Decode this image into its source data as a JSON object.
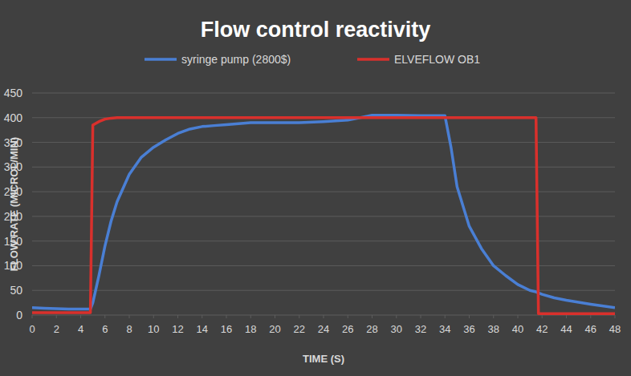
{
  "chart_data": {
    "type": "line",
    "title": "Flow control reactivity",
    "x_label": "TIME (S)",
    "y_label": "FLOW RATE (MICROL/MIN)",
    "x": [
      0,
      1,
      2,
      3,
      4,
      4.8,
      5,
      5.5,
      6,
      6.5,
      7,
      8,
      9,
      10,
      11,
      12,
      13,
      14,
      15,
      16,
      18,
      20,
      22,
      24,
      26,
      28,
      30,
      32,
      33,
      34,
      34.5,
      35,
      36,
      37,
      38,
      39,
      40,
      41,
      41.5,
      41.7,
      42,
      43,
      44,
      46,
      48
    ],
    "series": [
      {
        "name": "syringe pump (2800$)",
        "color": "#4a7fd4",
        "values": [
          15,
          14,
          13,
          12,
          12,
          12,
          25,
          80,
          140,
          190,
          230,
          285,
          320,
          340,
          355,
          368,
          377,
          382,
          384,
          386,
          390,
          390,
          390,
          392,
          395,
          405,
          405,
          404,
          404,
          404,
          340,
          260,
          180,
          135,
          100,
          80,
          62,
          50,
          47,
          45,
          42,
          35,
          30,
          22,
          15
        ]
      },
      {
        "name": "ELVEFLOW OB1",
        "color": "#d9302c",
        "values": [
          5,
          5,
          5,
          5,
          5,
          5,
          385,
          392,
          397,
          399,
          400,
          400,
          400,
          400,
          400,
          400,
          400,
          400,
          400,
          400,
          400,
          400,
          400,
          400,
          400,
          400,
          400,
          400,
          400,
          400,
          400,
          400,
          400,
          400,
          400,
          400,
          400,
          400,
          400,
          3,
          3,
          3,
          3,
          3,
          3
        ]
      }
    ],
    "xlim": [
      0,
      48
    ],
    "xticks": [
      0,
      2,
      4,
      6,
      8,
      10,
      12,
      14,
      16,
      18,
      20,
      22,
      24,
      26,
      28,
      30,
      32,
      34,
      36,
      38,
      40,
      42,
      44,
      46,
      48
    ],
    "ylim": [
      0,
      450
    ],
    "yticks": [
      0,
      50,
      100,
      150,
      200,
      250,
      300,
      350,
      400,
      450
    ],
    "grid": true,
    "legend": "top"
  }
}
